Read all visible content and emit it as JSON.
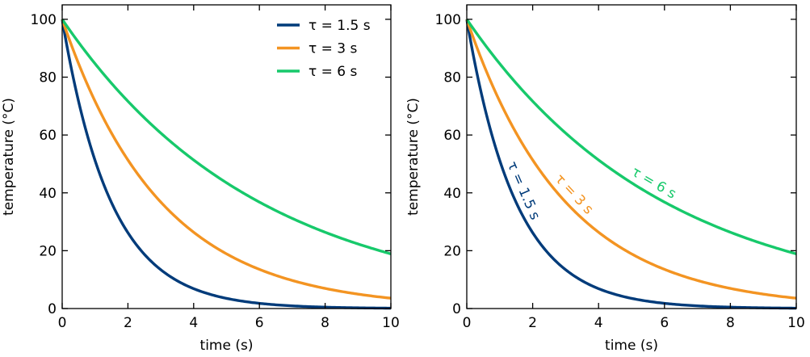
{
  "chart_data": [
    {
      "type": "line",
      "xlabel": "time (s)",
      "ylabel": "temperature (°C)",
      "xlim": [
        0,
        10
      ],
      "ylim": [
        0,
        105
      ],
      "xticks": [
        0,
        2,
        4,
        6,
        8,
        10
      ],
      "yticks": [
        0,
        20,
        40,
        60,
        80,
        100
      ],
      "grid": false,
      "legend": "top-right",
      "x": [
        0,
        1,
        2,
        3,
        4,
        5,
        6,
        7,
        8,
        9,
        10
      ],
      "series": [
        {
          "name": "τ = 1.5 s",
          "color": "#003b7a",
          "values": [
            100,
            51.3,
            26.4,
            13.5,
            6.9,
            3.6,
            1.8,
            0.9,
            0.5,
            0.2,
            0.1
          ]
        },
        {
          "name": "τ = 3 s",
          "color": "#f39422",
          "values": [
            100,
            71.7,
            51.3,
            36.8,
            26.4,
            18.9,
            13.5,
            9.7,
            6.9,
            5.0,
            3.6
          ]
        },
        {
          "name": "τ = 6 s",
          "color": "#17c96b",
          "values": [
            100,
            84.6,
            71.7,
            60.7,
            51.3,
            43.5,
            36.8,
            31.2,
            26.4,
            22.3,
            18.9
          ]
        }
      ]
    },
    {
      "type": "line",
      "xlabel": "time (s)",
      "ylabel": "temperature (°C)",
      "xlim": [
        0,
        10
      ],
      "ylim": [
        0,
        105
      ],
      "xticks": [
        0,
        2,
        4,
        6,
        8,
        10
      ],
      "yticks": [
        0,
        20,
        40,
        60,
        80,
        100
      ],
      "grid": false,
      "legend": "none",
      "x": [
        0,
        1,
        2,
        3,
        4,
        5,
        6,
        7,
        8,
        9,
        10
      ],
      "series": [
        {
          "name": "τ = 1.5 s",
          "color": "#003b7a",
          "values": [
            100,
            51.3,
            26.4,
            13.5,
            6.9,
            3.6,
            1.8,
            0.9,
            0.5,
            0.2,
            0.1
          ]
        },
        {
          "name": "τ = 3 s",
          "color": "#f39422",
          "values": [
            100,
            71.7,
            51.3,
            36.8,
            26.4,
            18.9,
            13.5,
            9.7,
            6.9,
            5.0,
            3.6
          ]
        },
        {
          "name": "τ = 6 s",
          "color": "#17c96b",
          "values": [
            100,
            84.6,
            71.7,
            60.7,
            51.3,
            43.5,
            36.8,
            31.2,
            26.4,
            22.3,
            18.9
          ]
        }
      ],
      "annotations": [
        {
          "text": "τ = 1.5 s",
          "series": 0,
          "x": 1.4
        },
        {
          "text": "τ = 3 s",
          "series": 1,
          "x": 3.0
        },
        {
          "text": "τ = 6 s",
          "series": 2,
          "x": 5.5
        }
      ]
    }
  ]
}
